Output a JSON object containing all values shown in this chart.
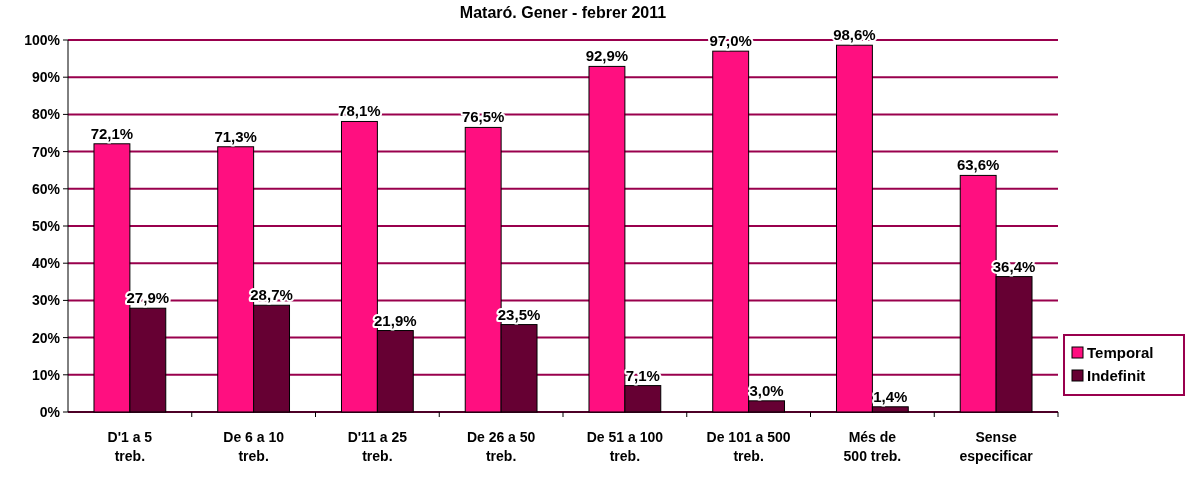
{
  "chart_data": {
    "type": "bar",
    "title": "Mataró. Gener - febrer 2011",
    "categories": [
      "D'1 a 5\ntreb.",
      "De 6 a 10\ntreb.",
      "D'11 a 25\ntreb.",
      "De 26 a 50\ntreb.",
      "De 51 a 100\ntreb.",
      "De 101 a 500\ntreb.",
      "Més de\n500 treb.",
      "Sense\nespecificar"
    ],
    "series": [
      {
        "name": "Temporal",
        "color": "#ff0f80",
        "values": [
          72.1,
          71.3,
          78.1,
          76.5,
          92.9,
          97.0,
          98.6,
          63.6
        ],
        "value_labels": [
          "72,1%",
          "71,3%",
          "78,1%",
          "76,5%",
          "92,9%",
          "97,0%",
          "98,6%",
          "63,6%"
        ]
      },
      {
        "name": "Indefinit",
        "color": "#660033",
        "values": [
          27.9,
          28.7,
          21.9,
          23.5,
          7.1,
          3.0,
          1.4,
          36.4
        ],
        "value_labels": [
          "27,9%",
          "28,7%",
          "21,9%",
          "23,5%",
          "7,1%",
          "3,0%",
          "1,4%",
          "36,4%"
        ]
      }
    ],
    "ylim": [
      0,
      100
    ],
    "yticks": [
      {
        "value": 0,
        "label": "0%"
      },
      {
        "value": 10,
        "label": "10%"
      },
      {
        "value": 20,
        "label": "20%"
      },
      {
        "value": 30,
        "label": "30%"
      },
      {
        "value": 40,
        "label": "40%"
      },
      {
        "value": 50,
        "label": "50%"
      },
      {
        "value": 60,
        "label": "60%"
      },
      {
        "value": 70,
        "label": "70%"
      },
      {
        "value": 80,
        "label": "80%"
      },
      {
        "value": 90,
        "label": "90%"
      },
      {
        "value": 100,
        "label": "100%"
      }
    ],
    "grid": "y",
    "legend": "right"
  }
}
